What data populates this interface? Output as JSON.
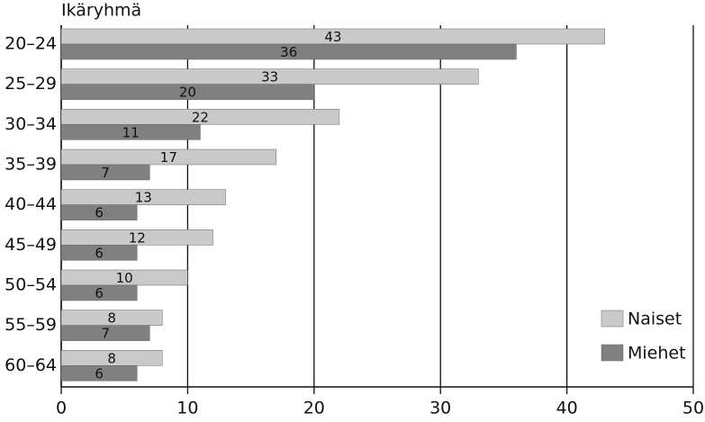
{
  "chart_data": {
    "type": "bar",
    "orientation": "horizontal",
    "y_axis_label": "Ikäryhmä",
    "categories": [
      "20–24",
      "25–29",
      "30–34",
      "35–39",
      "40–44",
      "45–49",
      "50–54",
      "55–59",
      "60–64"
    ],
    "series": [
      {
        "name": "Naiset",
        "color": "#c9c9c9",
        "values": [
          43,
          33,
          22,
          17,
          13,
          12,
          10,
          8,
          8
        ]
      },
      {
        "name": "Miehet",
        "color": "#808080",
        "values": [
          36,
          20,
          11,
          7,
          6,
          6,
          6,
          7,
          6
        ]
      }
    ],
    "xlim": [
      0,
      50
    ],
    "xticks": [
      0,
      10,
      20,
      30,
      40,
      50
    ],
    "grid": true,
    "legend": "lower right"
  }
}
